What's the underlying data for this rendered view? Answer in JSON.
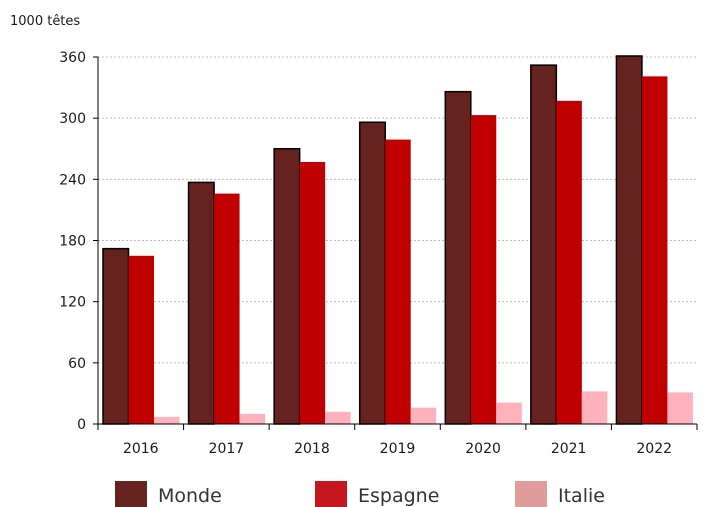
{
  "chart_data": {
    "type": "bar",
    "title": "",
    "unit_label": "1000 têtes",
    "xlabel": "",
    "ylabel": "",
    "categories": [
      "2016",
      "2017",
      "2018",
      "2019",
      "2020",
      "2021",
      "2022"
    ],
    "series": [
      {
        "name": "Monde",
        "color": "#66221f",
        "values": [
          172,
          237,
          270,
          296,
          326,
          352,
          361
        ]
      },
      {
        "name": "Espagne",
        "color": "#c00000",
        "values": [
          165,
          226,
          257,
          279,
          303,
          317,
          341
        ]
      },
      {
        "name": "Italie",
        "color": "#ffb2bb",
        "values": [
          7,
          10,
          12,
          16,
          21,
          32,
          31
        ]
      }
    ],
    "legend_colors": [
      "#66221f",
      "#c4161c",
      "#e09b9b"
    ],
    "ylim": [
      0,
      360
    ],
    "yticks": [
      0,
      60,
      120,
      180,
      240,
      300,
      360
    ],
    "grid": true,
    "legend_position": "bottom"
  }
}
